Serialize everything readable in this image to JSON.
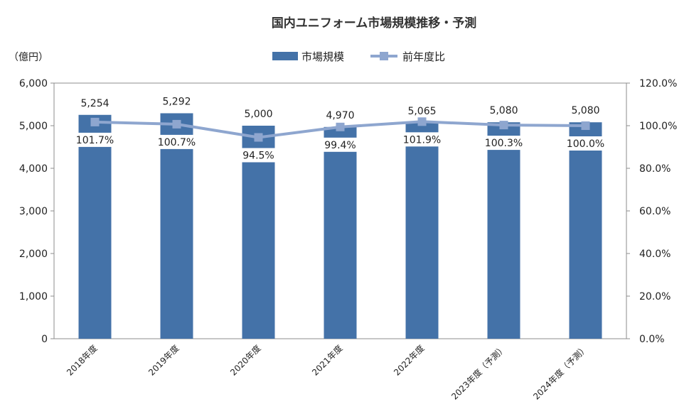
{
  "chart_data": {
    "type": "bar",
    "title": "国内ユニフォーム市場規模推移・予測",
    "y_left_unit": "（億円）",
    "categories": [
      "2018年度",
      "2019年度",
      "2020年度",
      "2021年度",
      "2022年度",
      "2023年度（予測）",
      "2024年度（予測）"
    ],
    "series": [
      {
        "name": "市場規模",
        "type": "bar",
        "axis": "left",
        "color": "#4472A8",
        "values": [
          5254,
          5292,
          5000,
          4970,
          5065,
          5080,
          5080
        ],
        "labels": [
          "5,254",
          "5,292",
          "5,000",
          "4,970",
          "5,065",
          "5,080",
          "5,080"
        ]
      },
      {
        "name": "前年度比",
        "type": "line",
        "axis": "right",
        "color": "#8EA6CF",
        "values": [
          101.7,
          100.7,
          94.5,
          99.4,
          101.9,
          100.3,
          100.0
        ],
        "labels": [
          "101.7%",
          "100.7%",
          "94.5%",
          "99.4%",
          "101.9%",
          "100.3%",
          "100.0%"
        ]
      }
    ],
    "ylim_left": [
      0,
      6000
    ],
    "yticks_left": [
      "0",
      "1,000",
      "2,000",
      "3,000",
      "4,000",
      "5,000",
      "6,000"
    ],
    "ylim_right": [
      0,
      120
    ],
    "yticks_right": [
      "0.0%",
      "20.0%",
      "40.0%",
      "60.0%",
      "80.0%",
      "100.0%",
      "120.0%"
    ],
    "legend_position": "top-center",
    "grid": false
  }
}
